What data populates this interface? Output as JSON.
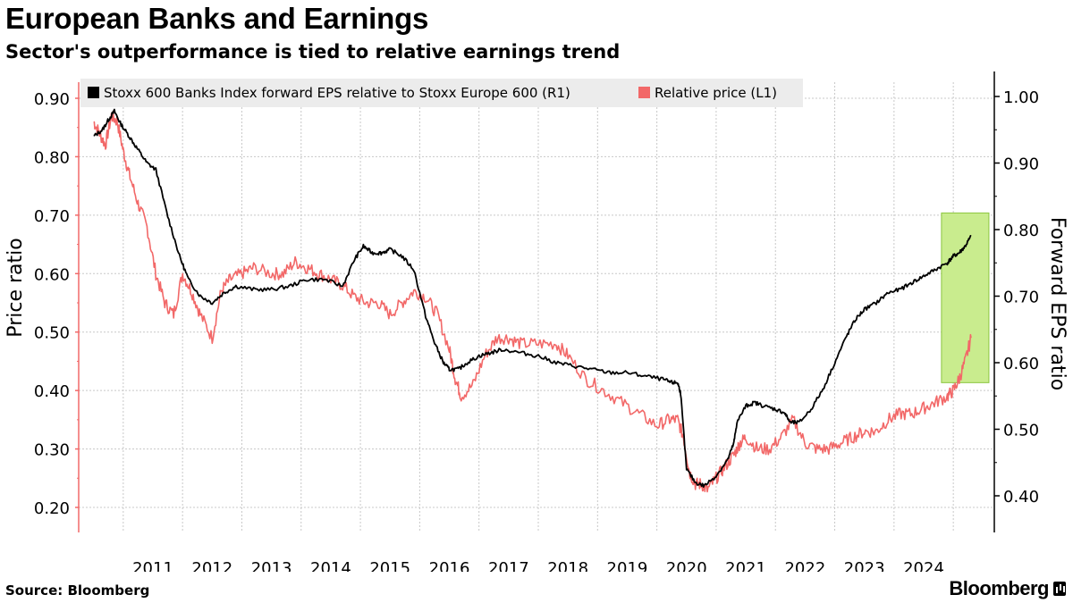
{
  "title": "European Banks and Earnings",
  "subtitle": "Sector's outperformance is tied to relative earnings trend",
  "source": "Source: Bloomberg",
  "brand": "Bloomberg",
  "colors": {
    "eps_line": "#000000",
    "price_line": "#f26868",
    "highlight_fill": "#c9ec8e",
    "highlight_stroke": "#8cc63f",
    "grid": "#c8c8c8",
    "legend_bg": "#ececec"
  },
  "chart_data": {
    "type": "line",
    "x_ticks": [
      "2011",
      "2012",
      "2013",
      "2014",
      "2015",
      "2016",
      "2017",
      "2018",
      "2019",
      "2020",
      "2021",
      "2022",
      "2023",
      "2024"
    ],
    "x_range": [
      2010.0,
      2025.5
    ],
    "left_axis": {
      "label": "Price ratio",
      "range": [
        0.18,
        0.92
      ],
      "ticks": [
        "0.90",
        "0.80",
        "0.70",
        "0.60",
        "0.50",
        "0.40",
        "0.30",
        "0.20"
      ]
    },
    "right_axis": {
      "label": "Forward EPS ratio",
      "range": [
        0.35,
        1.02
      ],
      "ticks": [
        "1.00",
        "0.90",
        "0.80",
        "0.70",
        "0.60",
        "0.50",
        "0.40"
      ]
    },
    "series": [
      {
        "name": "Stoxx 600 Banks Index forward EPS relative to Stoxx Europe 600 (R1)",
        "axis": "right",
        "x": [
          2010.0,
          2010.15,
          2010.25,
          2010.35,
          2010.45,
          2010.6,
          2010.75,
          2010.9,
          2011.05,
          2011.25,
          2011.45,
          2011.6,
          2011.8,
          2012.0,
          2012.2,
          2012.4,
          2012.7,
          2013.0,
          2013.3,
          2013.6,
          2013.9,
          2014.2,
          2014.4,
          2014.55,
          2014.7,
          2014.85,
          2015.0,
          2015.2,
          2015.4,
          2015.6,
          2015.75,
          2015.9,
          2016.0,
          2016.15,
          2016.3,
          2016.5,
          2016.7,
          2016.9,
          2017.2,
          2017.5,
          2017.8,
          2018.1,
          2018.4,
          2018.7,
          2019.0,
          2019.3,
          2019.6,
          2019.75,
          2019.85,
          2019.9,
          2020.0,
          2020.15,
          2020.3,
          2020.5,
          2020.7,
          2020.8,
          2020.85,
          2021.0,
          2021.15,
          2021.3,
          2021.5,
          2021.65,
          2021.75,
          2021.9,
          2022.1,
          2022.3,
          2022.5,
          2022.7,
          2022.85,
          2023.0,
          2023.2,
          2023.4,
          2023.6,
          2023.8,
          2024.0,
          2024.2,
          2024.4,
          2024.5,
          2024.6,
          2024.7,
          2024.8
        ],
        "y": [
          0.94,
          0.95,
          0.965,
          0.978,
          0.96,
          0.94,
          0.92,
          0.9,
          0.89,
          0.82,
          0.76,
          0.725,
          0.7,
          0.69,
          0.705,
          0.715,
          0.71,
          0.71,
          0.715,
          0.725,
          0.725,
          0.715,
          0.755,
          0.775,
          0.765,
          0.765,
          0.77,
          0.76,
          0.74,
          0.67,
          0.63,
          0.6,
          0.59,
          0.59,
          0.6,
          0.61,
          0.615,
          0.62,
          0.615,
          0.61,
          0.6,
          0.595,
          0.59,
          0.585,
          0.585,
          0.58,
          0.575,
          0.57,
          0.57,
          0.555,
          0.44,
          0.42,
          0.415,
          0.43,
          0.455,
          0.48,
          0.51,
          0.535,
          0.54,
          0.535,
          0.53,
          0.525,
          0.51,
          0.51,
          0.53,
          0.56,
          0.6,
          0.64,
          0.665,
          0.68,
          0.69,
          0.705,
          0.71,
          0.72,
          0.73,
          0.74,
          0.75,
          0.76,
          0.765,
          0.775,
          0.79
        ]
      },
      {
        "name": "Relative price (L1)",
        "axis": "left",
        "x": [
          2010.0,
          2010.1,
          2010.2,
          2010.3,
          2010.4,
          2010.5,
          2010.6,
          2010.75,
          2010.9,
          2011.05,
          2011.2,
          2011.35,
          2011.5,
          2011.65,
          2011.8,
          2012.0,
          2012.15,
          2012.3,
          2012.5,
          2012.7,
          2013.0,
          2013.2,
          2013.4,
          2013.6,
          2013.8,
          2014.0,
          2014.2,
          2014.4,
          2014.6,
          2014.8,
          2015.0,
          2015.2,
          2015.4,
          2015.6,
          2015.8,
          2016.0,
          2016.1,
          2016.2,
          2016.4,
          2016.6,
          2016.8,
          2017.0,
          2017.2,
          2017.5,
          2017.8,
          2018.0,
          2018.3,
          2018.6,
          2018.9,
          2019.2,
          2019.5,
          2019.7,
          2019.85,
          2019.95,
          2020.05,
          2020.15,
          2020.25,
          2020.35,
          2020.5,
          2020.65,
          2020.8,
          2020.9,
          2021.0,
          2021.2,
          2021.4,
          2021.6,
          2021.8,
          2022.0,
          2022.2,
          2022.4,
          2022.6,
          2022.8,
          2023.0,
          2023.2,
          2023.4,
          2023.6,
          2023.8,
          2024.0,
          2024.2,
          2024.4,
          2024.5,
          2024.6,
          2024.7,
          2024.8
        ],
        "y": [
          0.86,
          0.84,
          0.82,
          0.87,
          0.86,
          0.81,
          0.77,
          0.72,
          0.68,
          0.6,
          0.55,
          0.53,
          0.6,
          0.57,
          0.53,
          0.49,
          0.57,
          0.59,
          0.6,
          0.61,
          0.6,
          0.6,
          0.62,
          0.61,
          0.6,
          0.59,
          0.58,
          0.56,
          0.55,
          0.55,
          0.53,
          0.55,
          0.57,
          0.56,
          0.53,
          0.47,
          0.42,
          0.39,
          0.41,
          0.46,
          0.49,
          0.49,
          0.48,
          0.48,
          0.48,
          0.46,
          0.42,
          0.4,
          0.38,
          0.36,
          0.34,
          0.35,
          0.35,
          0.32,
          0.26,
          0.24,
          0.24,
          0.23,
          0.25,
          0.27,
          0.29,
          0.31,
          0.32,
          0.3,
          0.3,
          0.32,
          0.35,
          0.31,
          0.3,
          0.3,
          0.31,
          0.32,
          0.33,
          0.33,
          0.35,
          0.36,
          0.36,
          0.37,
          0.38,
          0.39,
          0.4,
          0.42,
          0.45,
          0.49
        ]
      }
    ],
    "highlight": {
      "x_from": 2024.3,
      "x_to": 2025.1,
      "y_right_from": 0.57,
      "y_right_to": 0.825
    }
  }
}
